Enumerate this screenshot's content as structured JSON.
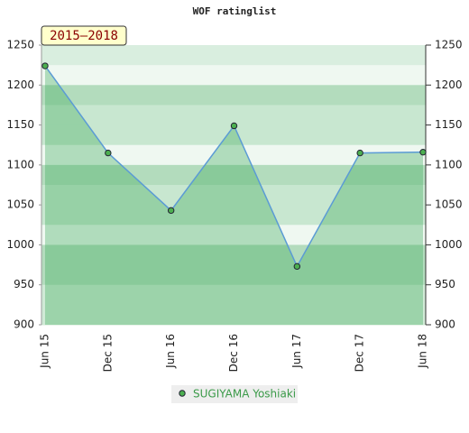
{
  "chart_data": {
    "type": "line",
    "title": "WOF ratinglist",
    "annotation": "2015–2018",
    "categories": [
      "Jun 15",
      "Dec 15",
      "Jun 16",
      "Dec 16",
      "Jun 17",
      "Dec 17",
      "Jun 18"
    ],
    "series": [
      {
        "name": "SUGIYAMA Yoshiaki",
        "color": "#5b9bd5",
        "marker_color": "#4caf50",
        "values": [
          1224,
          1115,
          1043,
          1149,
          973,
          1115,
          1116
        ]
      }
    ],
    "ylim": [
      900,
      1250
    ],
    "yticks": [
      900,
      950,
      1000,
      1050,
      1100,
      1150,
      1200,
      1250
    ],
    "y2lim": [
      900,
      1250
    ],
    "y2ticks": [
      900,
      950,
      1000,
      1050,
      1100,
      1150,
      1200,
      1250
    ],
    "legend": "bottom"
  }
}
